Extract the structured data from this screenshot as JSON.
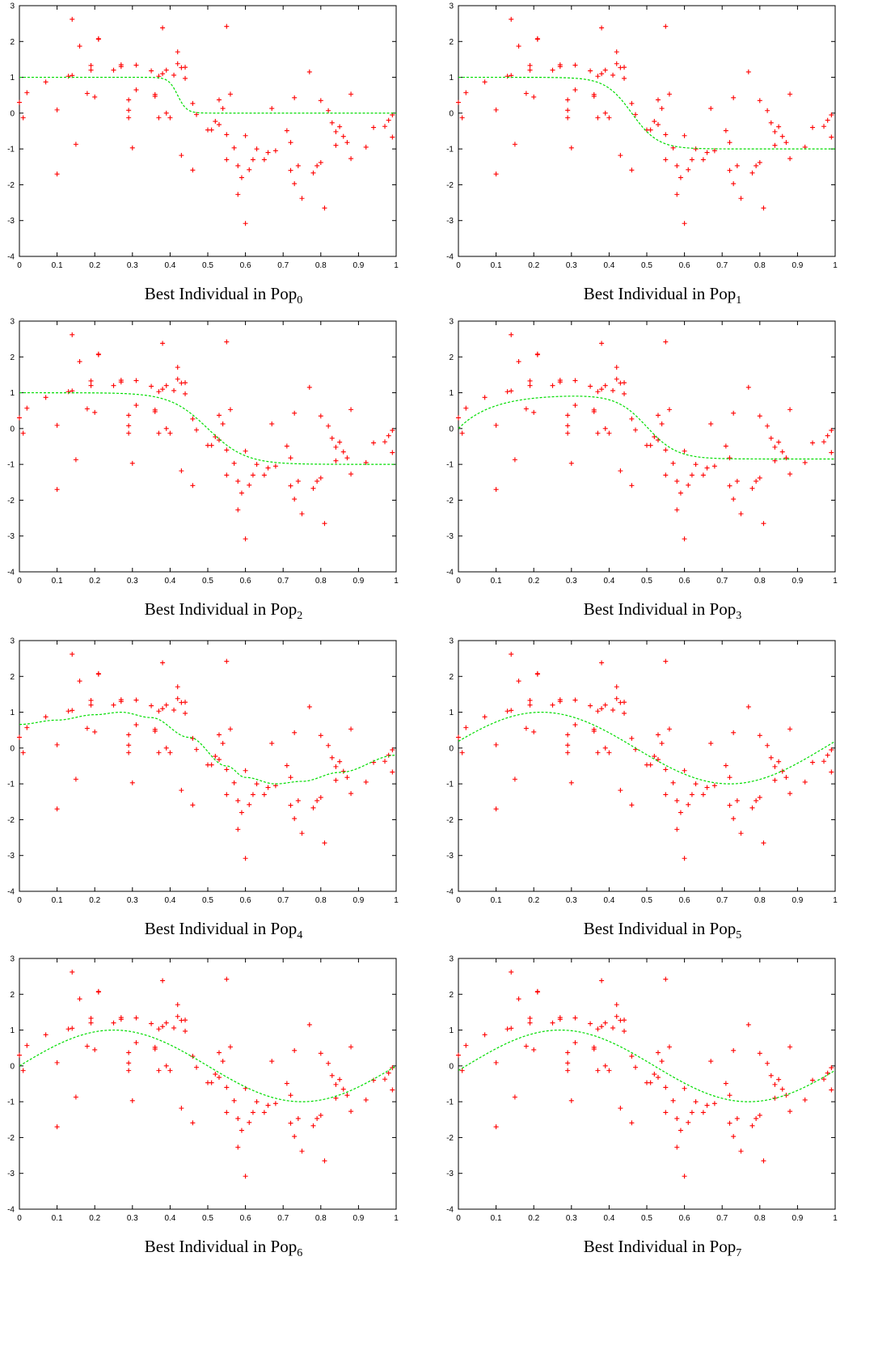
{
  "figure": {
    "caption_prefix": "Best Individual in Pop",
    "colors": {
      "points": "#ff0000",
      "fit": "#00dd00",
      "axes": "#000000"
    }
  },
  "chart_data": [
    {
      "type": "scatter",
      "caption": "Best Individual in Pop",
      "subscript": "0",
      "xlim": [
        0,
        1
      ],
      "ylim": [
        -4,
        3
      ],
      "xticks": [
        "0",
        "0.1",
        "0.2",
        "0.3",
        "0.4",
        "0.5",
        "0.6",
        "0.7",
        "0.8",
        "0.9",
        "1"
      ],
      "yticks": [
        "-4",
        "-3",
        "-2",
        "-1",
        "0",
        "1",
        "2",
        "3"
      ],
      "grid": false,
      "fit": {
        "kind": "step",
        "left": 1,
        "right": 0,
        "center": 0.42,
        "width": 0.012
      }
    },
    {
      "type": "scatter",
      "caption": "Best Individual in Pop",
      "subscript": "1",
      "xlim": [
        0,
        1
      ],
      "ylim": [
        -4,
        3
      ],
      "xticks": [
        "0",
        "0.1",
        "0.2",
        "0.3",
        "0.4",
        "0.5",
        "0.6",
        "0.7",
        "0.8",
        "0.9",
        "1"
      ],
      "yticks": [
        "-4",
        "-3",
        "-2",
        "-1",
        "0",
        "1",
        "2",
        "3"
      ],
      "grid": false,
      "fit": {
        "kind": "step",
        "left": 1,
        "right": -1,
        "center": 0.46,
        "width": 0.035
      }
    },
    {
      "type": "scatter",
      "caption": "Best Individual in Pop",
      "subscript": "2",
      "xlim": [
        0,
        1
      ],
      "ylim": [
        -4,
        3
      ],
      "xticks": [
        "0",
        "0.1",
        "0.2",
        "0.3",
        "0.4",
        "0.5",
        "0.6",
        "0.7",
        "0.8",
        "0.9",
        "1"
      ],
      "yticks": [
        "-4",
        "-3",
        "-2",
        "-1",
        "0",
        "1",
        "2",
        "3"
      ],
      "grid": false,
      "fit": {
        "kind": "step",
        "left": 1,
        "right": -1,
        "center": 0.5,
        "width": 0.05
      }
    },
    {
      "type": "scatter",
      "caption": "Best Individual in Pop",
      "subscript": "3",
      "xlim": [
        0,
        1
      ],
      "ylim": [
        -4,
        3
      ],
      "xticks": [
        "0",
        "0.1",
        "0.2",
        "0.3",
        "0.4",
        "0.5",
        "0.6",
        "0.7",
        "0.8",
        "0.9",
        "1"
      ],
      "yticks": [
        "-4",
        "-3",
        "-2",
        "-1",
        "0",
        "1",
        "2",
        "3"
      ],
      "grid": false,
      "fit": {
        "kind": "bump",
        "peak": 0.95,
        "rise": 0.09,
        "right": -0.85,
        "center": 0.5,
        "width": 0.04
      }
    },
    {
      "type": "scatter",
      "caption": "Best Individual in Pop",
      "subscript": "4",
      "xlim": [
        0,
        1
      ],
      "ylim": [
        -4,
        3
      ],
      "xticks": [
        "0",
        "0.1",
        "0.2",
        "0.3",
        "0.4",
        "0.5",
        "0.6",
        "0.7",
        "0.8",
        "0.9",
        "1"
      ],
      "yticks": [
        "-4",
        "-3",
        "-2",
        "-1",
        "0",
        "1",
        "2",
        "3"
      ],
      "grid": false,
      "fit": {
        "kind": "points",
        "x": [
          0,
          0.1,
          0.2,
          0.27,
          0.35,
          0.45,
          0.55,
          0.6,
          0.68,
          0.75,
          0.85,
          1
        ],
        "y": [
          0.66,
          0.78,
          0.93,
          1,
          0.85,
          0.3,
          -0.5,
          -0.82,
          -1,
          -0.93,
          -0.68,
          -0.2
        ]
      }
    },
    {
      "type": "scatter",
      "caption": "Best Individual in Pop",
      "subscript": "5",
      "xlim": [
        0,
        1
      ],
      "ylim": [
        -4,
        3
      ],
      "xticks": [
        "0",
        "0.1",
        "0.2",
        "0.3",
        "0.4",
        "0.5",
        "0.6",
        "0.7",
        "0.8",
        "0.9",
        "1"
      ],
      "yticks": [
        "-4",
        "-3",
        "-2",
        "-1",
        "0",
        "1",
        "2",
        "3"
      ],
      "grid": false,
      "fit": {
        "kind": "sine",
        "amp": 1,
        "phase": 0.03
      }
    },
    {
      "type": "scatter",
      "caption": "Best Individual in Pop",
      "subscript": "6",
      "xlim": [
        0,
        1
      ],
      "ylim": [
        -4,
        3
      ],
      "xticks": [
        "0",
        "0.1",
        "0.2",
        "0.3",
        "0.4",
        "0.5",
        "0.6",
        "0.7",
        "0.8",
        "0.9",
        "1"
      ],
      "yticks": [
        "-4",
        "-3",
        "-2",
        "-1",
        "0",
        "1",
        "2",
        "3"
      ],
      "grid": false,
      "fit": {
        "kind": "sine",
        "amp": 1,
        "phase": 0
      }
    },
    {
      "type": "scatter",
      "caption": "Best Individual in Pop",
      "subscript": "7",
      "xlim": [
        0,
        1
      ],
      "ylim": [
        -4,
        3
      ],
      "xticks": [
        "0",
        "0.1",
        "0.2",
        "0.3",
        "0.4",
        "0.5",
        "0.6",
        "0.7",
        "0.8",
        "0.9",
        "1"
      ],
      "yticks": [
        "-4",
        "-3",
        "-2",
        "-1",
        "0",
        "1",
        "2",
        "3"
      ],
      "grid": false,
      "fit": {
        "kind": "sine",
        "amp": 1,
        "phase": -0.02
      }
    }
  ],
  "points": [
    [
      0.0,
      0.3
    ],
    [
      0.01,
      -0.13
    ],
    [
      0.02,
      0.57
    ],
    [
      0.07,
      0.87
    ],
    [
      0.1,
      -1.7
    ],
    [
      0.1,
      0.09
    ],
    [
      0.13,
      1.03
    ],
    [
      0.14,
      1.05
    ],
    [
      0.14,
      2.62
    ],
    [
      0.15,
      -0.87
    ],
    [
      0.16,
      1.87
    ],
    [
      0.18,
      0.55
    ],
    [
      0.19,
      1.2
    ],
    [
      0.19,
      1.33
    ],
    [
      0.2,
      0.45
    ],
    [
      0.21,
      2.08
    ],
    [
      0.21,
      2.06
    ],
    [
      0.25,
      1.2
    ],
    [
      0.27,
      1.3
    ],
    [
      0.27,
      1.35
    ],
    [
      0.29,
      0.37
    ],
    [
      0.29,
      0.08
    ],
    [
      0.29,
      -0.13
    ],
    [
      0.3,
      -0.97
    ],
    [
      0.31,
      0.65
    ],
    [
      0.31,
      1.34
    ],
    [
      0.35,
      1.18
    ],
    [
      0.36,
      0.47
    ],
    [
      0.36,
      0.52
    ],
    [
      0.37,
      1.03
    ],
    [
      0.37,
      -0.13
    ],
    [
      0.38,
      2.38
    ],
    [
      0.38,
      1.1
    ],
    [
      0.39,
      0.0
    ],
    [
      0.39,
      1.2
    ],
    [
      0.4,
      -0.13
    ],
    [
      0.41,
      1.06
    ],
    [
      0.42,
      1.71
    ],
    [
      0.42,
      1.38
    ],
    [
      0.43,
      -1.18
    ],
    [
      0.43,
      1.27
    ],
    [
      0.44,
      1.28
    ],
    [
      0.44,
      0.97
    ],
    [
      0.46,
      -1.59
    ],
    [
      0.46,
      0.27
    ],
    [
      0.47,
      -0.04
    ],
    [
      0.5,
      -0.47
    ],
    [
      0.51,
      -0.47
    ],
    [
      0.52,
      -0.23
    ],
    [
      0.53,
      -0.32
    ],
    [
      0.53,
      0.37
    ],
    [
      0.54,
      0.13
    ],
    [
      0.55,
      2.42
    ],
    [
      0.55,
      -1.3
    ],
    [
      0.55,
      -0.6
    ],
    [
      0.56,
      0.53
    ],
    [
      0.57,
      -0.97
    ],
    [
      0.58,
      -1.47
    ],
    [
      0.58,
      -2.27
    ],
    [
      0.59,
      -1.8
    ],
    [
      0.6,
      -0.63
    ],
    [
      0.6,
      -3.08
    ],
    [
      0.61,
      -1.58
    ],
    [
      0.62,
      -1.3
    ],
    [
      0.63,
      -1.0
    ],
    [
      0.65,
      -1.3
    ],
    [
      0.66,
      -1.1
    ],
    [
      0.67,
      0.13
    ],
    [
      0.68,
      -1.05
    ],
    [
      0.71,
      -0.49
    ],
    [
      0.72,
      -0.82
    ],
    [
      0.72,
      -1.6
    ],
    [
      0.73,
      -1.97
    ],
    [
      0.73,
      0.43
    ],
    [
      0.74,
      -1.47
    ],
    [
      0.75,
      -2.38
    ],
    [
      0.77,
      1.15
    ],
    [
      0.78,
      -1.67
    ],
    [
      0.79,
      -1.47
    ],
    [
      0.8,
      0.35
    ],
    [
      0.8,
      -1.38
    ],
    [
      0.81,
      -2.65
    ],
    [
      0.82,
      0.07
    ],
    [
      0.83,
      -0.27
    ],
    [
      0.84,
      -0.52
    ],
    [
      0.84,
      -0.9
    ],
    [
      0.85,
      -0.38
    ],
    [
      0.86,
      -0.65
    ],
    [
      0.87,
      -0.82
    ],
    [
      0.88,
      0.53
    ],
    [
      0.88,
      -1.27
    ],
    [
      0.92,
      -0.95
    ],
    [
      0.94,
      -0.4
    ],
    [
      0.97,
      -0.37
    ],
    [
      0.98,
      -0.2
    ],
    [
      0.99,
      -0.05
    ],
    [
      0.99,
      -0.67
    ]
  ]
}
